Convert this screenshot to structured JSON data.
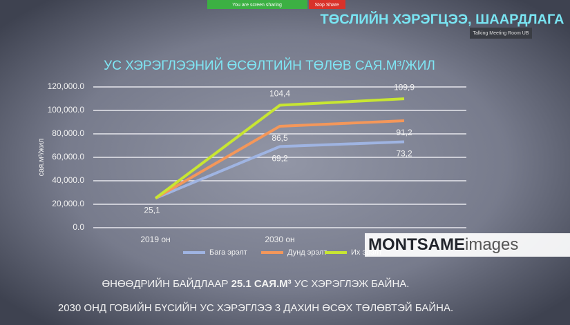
{
  "screen_share": {
    "status": "You are screen sharing",
    "stop": "Stop Share"
  },
  "header": {
    "title": "ТӨСЛИЙН ХЭРЭГЦЭЭ, ШААРДЛАГА",
    "meeting_room": "Talking Meeting Room UB"
  },
  "chart_data": {
    "type": "line",
    "title": "УС ХЭРЭГЛЭЭНИЙ ӨСӨЛТИЙН ТӨЛӨВ САЯ.М³/ЖИЛ",
    "y_label": "сая.м³/жил",
    "categories": [
      "2019 он",
      "2030 он",
      null
    ],
    "series": [
      {
        "name": "Бага эрэлт",
        "color": "#9fb4e2",
        "values": [
          25100,
          69200,
          73200
        ],
        "value_labels": [
          "25,1",
          "69,2",
          "73,2"
        ]
      },
      {
        "name": "Дунд эрэлт",
        "color": "#f4975a",
        "values": [
          25100,
          86500,
          91200
        ],
        "value_labels": [
          null,
          "86,5",
          "91,2"
        ]
      },
      {
        "name": "Их эрэлт",
        "color": "#c8e632",
        "values": [
          25100,
          104400,
          109900
        ],
        "value_labels": [
          null,
          "104,4",
          "109,9"
        ]
      }
    ],
    "ylim": [
      0,
      120000
    ],
    "yticks": [
      {
        "value": 0,
        "label": "0.0"
      },
      {
        "value": 20000,
        "label": "20,000.0"
      },
      {
        "value": 40000,
        "label": "40,000.0"
      },
      {
        "value": 60000,
        "label": "60,000.0"
      },
      {
        "value": 80000,
        "label": "80,000.0"
      },
      {
        "value": 100000,
        "label": "100,000.0"
      },
      {
        "value": 120000,
        "label": "120,000.0"
      }
    ],
    "grid": true,
    "legend": "bottom"
  },
  "watermark": {
    "brand": "MONTSAME",
    "suffix": "images"
  },
  "notes": [
    {
      "before": "ӨНӨӨДРИЙН БАЙДЛААР ",
      "bold": "25.1 САЯ.М³",
      "after": " УС ХЭРЭГЛЭЖ БАЙНА."
    },
    {
      "text": "2030 ОНД ГОВИЙН БҮСИЙН УС ХЭРЭГЛЭЭ 3 ДАХИН ӨСӨХ ТӨЛӨВТЭЙ БАЙНА."
    }
  ]
}
